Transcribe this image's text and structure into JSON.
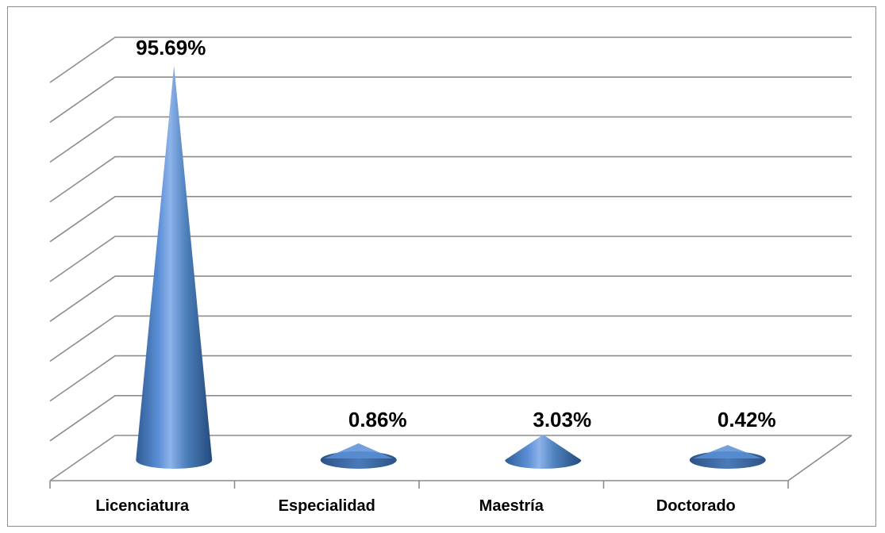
{
  "chart_data": {
    "type": "bar",
    "style": "3d-cone",
    "categories": [
      "Licenciatura",
      "Especialidad",
      "Maestría",
      "Doctorado"
    ],
    "values": [
      95.69,
      0.86,
      3.03,
      0.42
    ],
    "data_labels": [
      "95.69%",
      "0.86%",
      "3.03%",
      "0.42%"
    ],
    "title": "",
    "xlabel": "",
    "ylabel": "",
    "ylim": [
      0,
      100
    ],
    "grid": true,
    "legend": "none",
    "colors": {
      "bar": "#4f81bd",
      "bar_dark": "#2c5285",
      "gridline": "#8c8c8c",
      "frame": "#8c8c8c"
    }
  }
}
